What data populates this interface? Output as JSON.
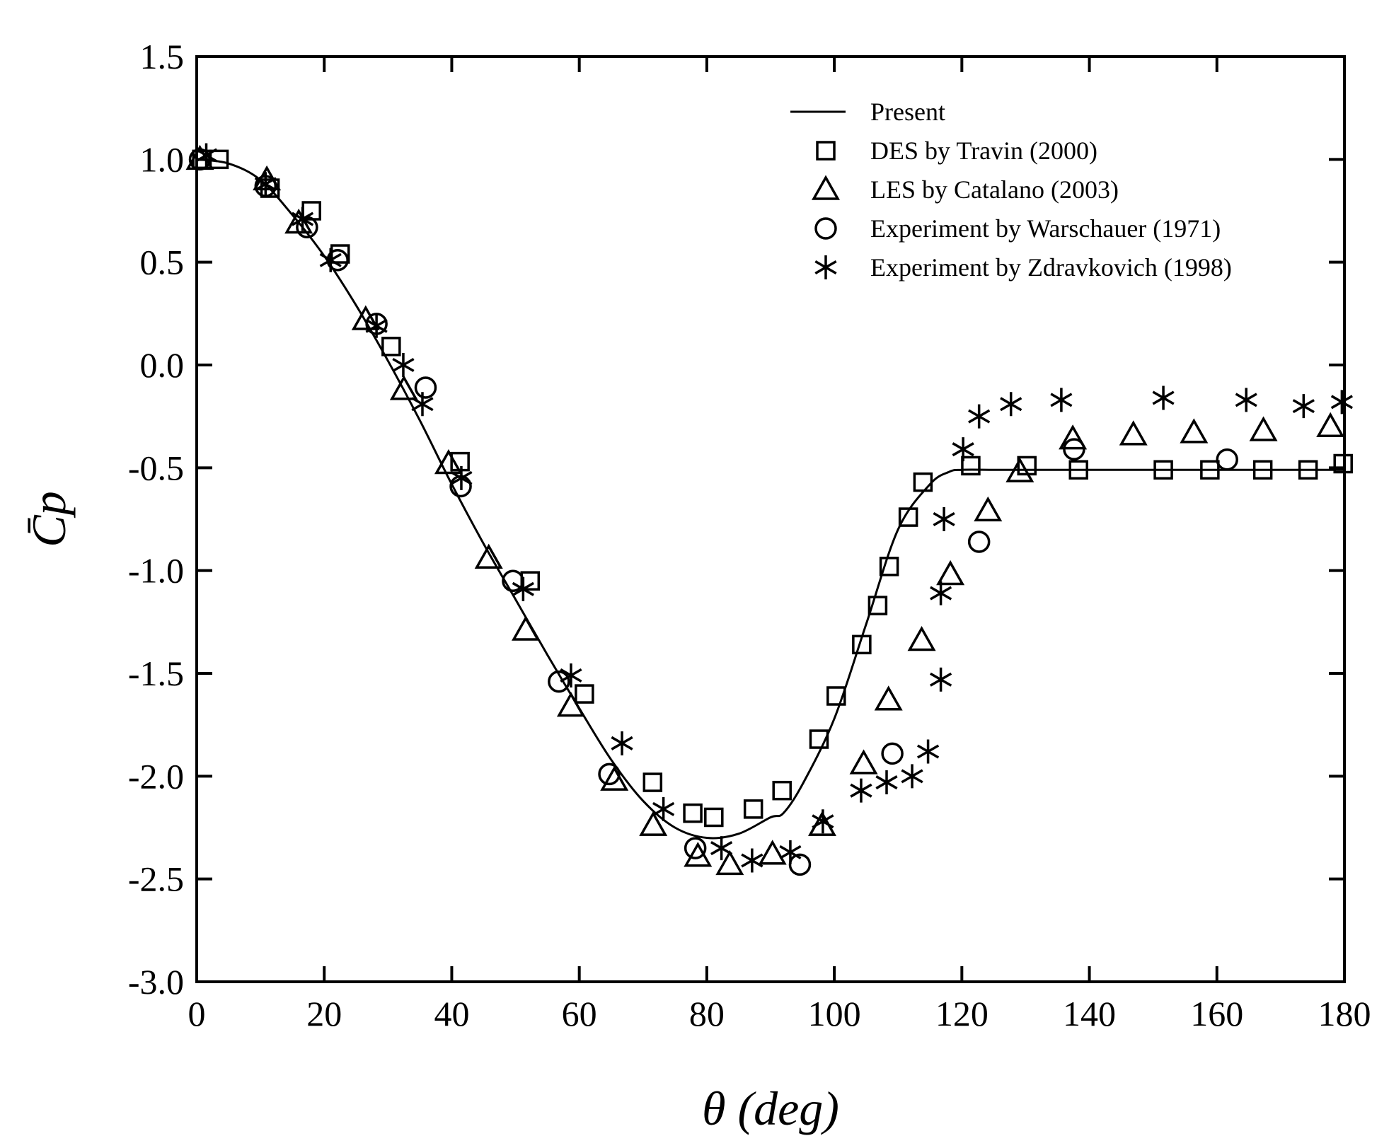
{
  "chart_data": {
    "type": "scatter",
    "xlabel": "θ (deg)",
    "ylabel": "C̄p",
    "xlim": [
      0,
      180
    ],
    "ylim": [
      -3.0,
      1.5
    ],
    "x_ticks": [
      "0",
      "20",
      "40",
      "60",
      "80",
      "100",
      "120",
      "140",
      "160",
      "180"
    ],
    "y_ticks": [
      "1.5",
      "1.0",
      "0.5",
      "0.0",
      "-0.5",
      "-1.0",
      "-1.5",
      "-2.0",
      "-2.5",
      "-3.0"
    ],
    "x_tick_values": [
      0,
      20,
      40,
      60,
      80,
      100,
      120,
      140,
      160,
      180
    ],
    "y_tick_values": [
      1.5,
      1.0,
      0.5,
      0.0,
      -0.5,
      -1.0,
      -1.5,
      -2.0,
      -2.5,
      -3.0
    ],
    "grid": false,
    "legend_position": "top-right",
    "series": [
      {
        "name": "Present",
        "marker": "line",
        "x": [
          0,
          5,
          10,
          15,
          20,
          25,
          30,
          35,
          40,
          45,
          50,
          55,
          60,
          65,
          70,
          75,
          80,
          85,
          90,
          92,
          95,
          100,
          105,
          110,
          115,
          118,
          120,
          125,
          130,
          140,
          150,
          160,
          170,
          180
        ],
        "y": [
          1.0,
          0.98,
          0.9,
          0.73,
          0.53,
          0.29,
          0.02,
          -0.27,
          -0.58,
          -0.87,
          -1.14,
          -1.41,
          -1.67,
          -1.92,
          -2.12,
          -2.25,
          -2.3,
          -2.28,
          -2.2,
          -2.18,
          -2.04,
          -1.72,
          -1.26,
          -0.8,
          -0.58,
          -0.52,
          -0.51,
          -0.51,
          -0.51,
          -0.51,
          -0.51,
          -0.51,
          -0.51,
          -0.51
        ]
      },
      {
        "name": "DES by Travin (2000)",
        "marker": "square",
        "x": [
          0.8,
          3.5,
          11.5,
          18,
          22.5,
          30.5,
          41.3,
          52.3,
          60.8,
          71.5,
          77.8,
          81.1,
          87.3,
          91.8,
          97.6,
          100.3,
          104.3,
          106.8,
          108.6,
          111.6,
          113.9,
          121.4,
          130.2,
          138.3,
          151.6,
          158.9,
          167.2,
          174.3,
          179.8
        ],
        "y": [
          1.0,
          1.0,
          0.86,
          0.75,
          0.54,
          0.09,
          -0.47,
          -1.05,
          -1.6,
          -2.03,
          -2.18,
          -2.2,
          -2.16,
          -2.07,
          -1.82,
          -1.61,
          -1.36,
          -1.17,
          -0.98,
          -0.74,
          -0.57,
          -0.49,
          -0.49,
          -0.51,
          -0.51,
          -0.51,
          -0.51,
          -0.51,
          -0.48
        ]
      },
      {
        "name": "LES by Catalano (2003)",
        "marker": "triangle",
        "x": [
          0.5,
          11,
          16,
          26.5,
          32.5,
          39.5,
          45.8,
          51.6,
          58.7,
          65.5,
          71.6,
          78.6,
          83.6,
          90.3,
          98.1,
          104.6,
          108.5,
          113.7,
          118.2,
          124.1,
          129.1,
          137.4,
          146.9,
          156.4,
          167.3,
          177.8
        ],
        "y": [
          1.0,
          0.9,
          0.69,
          0.22,
          -0.12,
          -0.48,
          -0.94,
          -1.29,
          -1.66,
          -2.02,
          -2.24,
          -2.39,
          -2.43,
          -2.38,
          -2.24,
          -1.94,
          -1.63,
          -1.34,
          -1.02,
          -0.71,
          -0.52,
          -0.36,
          -0.34,
          -0.33,
          -0.32,
          -0.3
        ]
      },
      {
        "name": "Experiment by Warschauer (1971)",
        "marker": "circle",
        "x": [
          0.5,
          10.8,
          17.3,
          22.1,
          28.2,
          35.9,
          41.4,
          49.6,
          56.8,
          64.7,
          78.2,
          94.6,
          109.1,
          122.7,
          137.6,
          161.6
        ],
        "y": [
          1.0,
          0.87,
          0.67,
          0.51,
          0.2,
          -0.11,
          -0.59,
          -1.05,
          -1.54,
          -1.99,
          -2.35,
          -2.43,
          -1.89,
          -0.86,
          -0.41,
          -0.46
        ]
      },
      {
        "name": "Experiment by Zdravkovich (1998)",
        "marker": "asterisk",
        "x": [
          1.5,
          10.8,
          16.6,
          21,
          28.2,
          32.4,
          35.4,
          41.5,
          51.2,
          58.7,
          66.7,
          73.2,
          82.3,
          87.1,
          93.1,
          98.2,
          104.2,
          108.2,
          112.2,
          114.7,
          116.7,
          116.7,
          117.2,
          120.2,
          122.7,
          127.7,
          135.6,
          151.6,
          164.6,
          173.6,
          179.6
        ],
        "y": [
          1.02,
          0.88,
          0.71,
          0.51,
          0.19,
          0.0,
          -0.19,
          -0.55,
          -1.09,
          -1.51,
          -1.84,
          -2.16,
          -2.35,
          -2.41,
          -2.37,
          -2.22,
          -2.07,
          -2.03,
          -2.0,
          -1.88,
          -1.53,
          -1.11,
          -0.75,
          -0.41,
          -0.25,
          -0.19,
          -0.17,
          -0.16,
          -0.17,
          -0.2,
          -0.18
        ]
      }
    ]
  }
}
